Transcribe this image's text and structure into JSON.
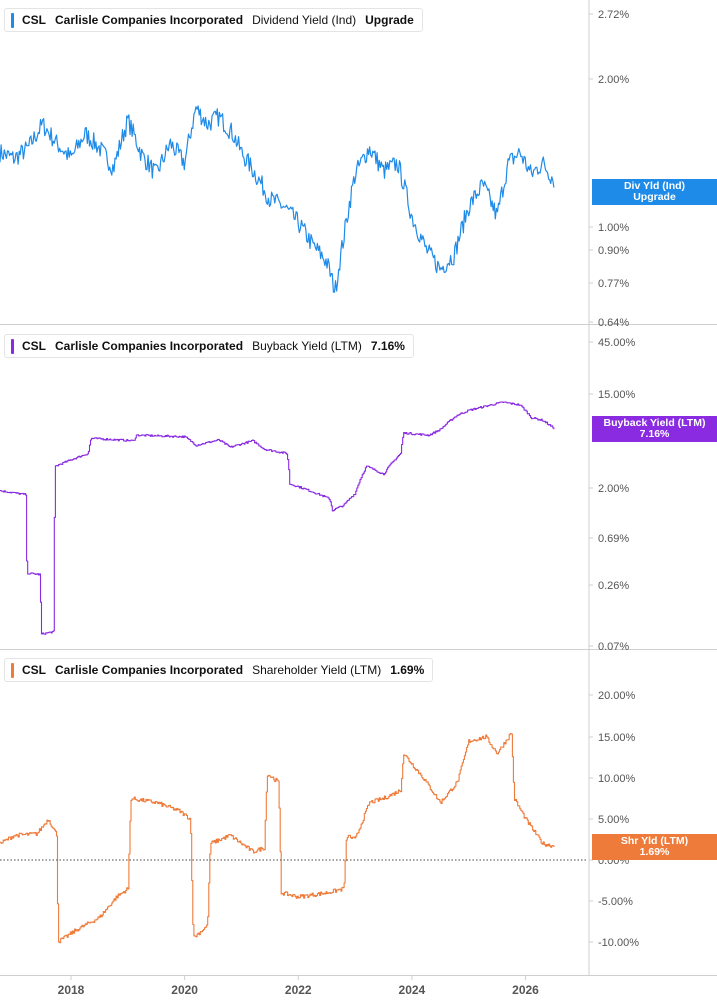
{
  "colors": {
    "dividend": "#1f8be8",
    "buyback": "#8a2be2",
    "shareholder": "#ef7b3a",
    "axis_text": "#555555",
    "divider": "#cfcfcf"
  },
  "x_axis": {
    "ticks": [
      "2018",
      "2020",
      "2022",
      "2024",
      "2026"
    ],
    "range": [
      2016.75,
      2027.1
    ]
  },
  "panels": [
    {
      "id": "dividend",
      "legend": {
        "ticker": "CSL",
        "company": "Carlisle Companies Incorporated",
        "metric": "Dividend Yield (Ind)",
        "value": "Upgrade"
      },
      "tag": {
        "line1": "Div Yld (Ind)",
        "line2": "Upgrade"
      },
      "y_ticks": [
        "2.72%",
        "2.00%",
        "1.00%",
        "0.90%",
        "0.77%",
        "0.64%"
      ]
    },
    {
      "id": "buyback",
      "legend": {
        "ticker": "CSL",
        "company": "Carlisle Companies Incorporated",
        "metric": "Buyback Yield (LTM)",
        "value": "7.16%"
      },
      "tag": {
        "line1": "Buyback Yield (LTM)",
        "line2": "7.16%"
      },
      "y_ticks": [
        "45.00%",
        "15.00%",
        "2.00%",
        "0.69%",
        "0.26%",
        "0.07%"
      ]
    },
    {
      "id": "shareholder",
      "legend": {
        "ticker": "CSL",
        "company": "Carlisle Companies Incorporated",
        "metric": "Shareholder Yield (LTM)",
        "value": "1.69%"
      },
      "tag": {
        "line1": "Shr Yld (LTM)",
        "line2": "1.69%"
      },
      "y_ticks": [
        "20.00%",
        "15.00%",
        "10.00%",
        "5.00%",
        "0.00%",
        "-5.00%",
        "-10.00%"
      ]
    }
  ],
  "chart_data": [
    {
      "type": "line",
      "title": "",
      "series": [
        {
          "name": "Dividend Yield (Ind)",
          "x": [
            2016.75,
            2017.0,
            2017.25,
            2017.5,
            2017.75,
            2018.0,
            2018.25,
            2018.5,
            2018.75,
            2019.0,
            2019.25,
            2019.5,
            2019.75,
            2020.0,
            2020.2,
            2020.4,
            2020.6,
            2020.85,
            2021.0,
            2021.25,
            2021.5,
            2021.75,
            2022.0,
            2022.25,
            2022.5,
            2022.65,
            2022.8,
            2023.0,
            2023.25,
            2023.5,
            2023.75,
            2024.0,
            2024.25,
            2024.5,
            2024.75,
            2025.0,
            2025.25,
            2025.5,
            2025.7,
            2025.9,
            2026.1,
            2026.3,
            2026.5
          ],
          "y": [
            1.42,
            1.38,
            1.45,
            1.62,
            1.48,
            1.38,
            1.55,
            1.45,
            1.32,
            1.65,
            1.4,
            1.28,
            1.48,
            1.35,
            1.75,
            1.62,
            1.68,
            1.55,
            1.42,
            1.28,
            1.14,
            1.1,
            1.02,
            0.92,
            0.85,
            0.74,
            0.95,
            1.28,
            1.45,
            1.3,
            1.35,
            1.05,
            0.9,
            0.82,
            0.88,
            1.1,
            1.22,
            1.05,
            1.35,
            1.42,
            1.28,
            1.35,
            1.25
          ]
        }
      ],
      "ylim": [
        0.64,
        2.72
      ],
      "scale": "log"
    },
    {
      "type": "line",
      "title": "",
      "series": [
        {
          "name": "Buyback Yield (LTM)",
          "x": [
            2016.75,
            2017.2,
            2017.22,
            2017.45,
            2017.47,
            2017.7,
            2017.72,
            2017.9,
            2018.3,
            2018.35,
            2019.1,
            2019.15,
            2020.0,
            2020.2,
            2020.6,
            2020.8,
            2021.2,
            2021.4,
            2021.6,
            2021.8,
            2021.85,
            2022.2,
            2022.55,
            2022.6,
            2022.8,
            2023.0,
            2023.2,
            2023.5,
            2023.8,
            2023.85,
            2024.3,
            2024.5,
            2024.8,
            2025.0,
            2025.3,
            2025.6,
            2025.9,
            2026.1,
            2026.3,
            2026.5
          ],
          "y": [
            1.9,
            1.75,
            0.33,
            0.32,
            0.09,
            0.095,
            3.2,
            3.5,
            4.2,
            5.8,
            5.5,
            6.2,
            6.0,
            5.0,
            5.6,
            4.8,
            5.5,
            4.6,
            4.4,
            4.2,
            2.2,
            1.9,
            1.6,
            1.25,
            1.4,
            1.8,
            3.2,
            2.7,
            4.2,
            6.5,
            6.2,
            7.0,
            9.5,
            10.5,
            11.5,
            12.5,
            11.8,
            9.0,
            8.5,
            7.16
          ]
        }
      ],
      "ylim": [
        0.07,
        45.0
      ],
      "scale": "log"
    },
    {
      "type": "line",
      "title": "",
      "series": [
        {
          "name": "Shareholder Yield (LTM)",
          "x": [
            2016.75,
            2017.0,
            2017.4,
            2017.6,
            2017.75,
            2017.77,
            2018.1,
            2018.5,
            2018.8,
            2019.0,
            2019.05,
            2019.5,
            2019.9,
            2020.1,
            2020.15,
            2020.4,
            2020.45,
            2020.8,
            2021.2,
            2021.4,
            2021.45,
            2021.65,
            2021.7,
            2022.0,
            2022.5,
            2022.8,
            2022.85,
            2023.0,
            2023.25,
            2023.5,
            2023.8,
            2023.85,
            2024.2,
            2024.5,
            2024.8,
            2025.0,
            2025.3,
            2025.5,
            2025.75,
            2025.8,
            2026.0,
            2026.3,
            2026.5
          ],
          "y": [
            2.0,
            3.0,
            3.2,
            5.0,
            3.0,
            -10.0,
            -8.5,
            -7.0,
            -4.5,
            -3.5,
            7.5,
            7.0,
            6.0,
            5.0,
            -9.5,
            -8.0,
            2.0,
            3.0,
            1.0,
            1.5,
            10.5,
            9.5,
            -4.0,
            -4.5,
            -4.0,
            -3.5,
            3.0,
            2.5,
            7.0,
            7.5,
            8.5,
            13.0,
            10.0,
            7.0,
            9.5,
            14.5,
            15.0,
            13.0,
            15.5,
            7.5,
            5.0,
            2.0,
            1.69
          ]
        }
      ],
      "ylim": [
        -12.0,
        22.0
      ],
      "scale": "linear"
    }
  ]
}
